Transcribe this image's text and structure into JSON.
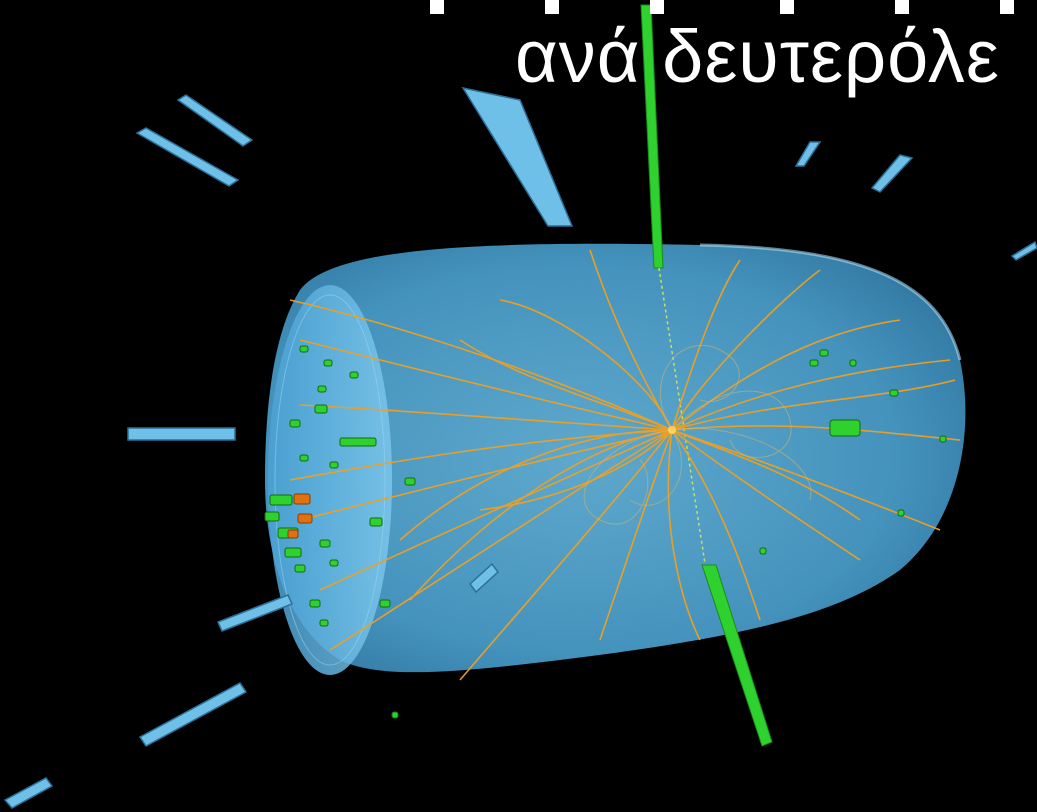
{
  "caption": {
    "text": "ανά δευτερόλε",
    "color": "#ffffff"
  },
  "scene": {
    "background": "#000000",
    "colors": {
      "detector": "#5fb6e6",
      "detector_glow": "#7fc8ee",
      "tracks": "#f0a020",
      "hits": "#2fd12f",
      "energy_deposit": "#e07010"
    }
  }
}
